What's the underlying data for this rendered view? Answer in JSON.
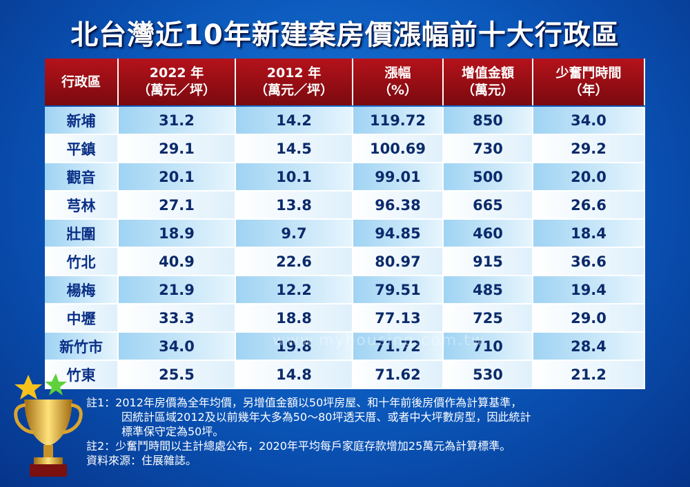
{
  "title": "北台灣近10年新建案房價漲幅前十大行政區",
  "table": {
    "header": [
      [
        "行政區"
      ],
      [
        "2022 年",
        "（萬元／坪）"
      ],
      [
        "2012 年",
        "（萬元／坪）"
      ],
      [
        "漲幅",
        "（%）"
      ],
      [
        "增值金額",
        "（萬元）"
      ],
      [
        "少奮鬥時間",
        "（年）"
      ]
    ],
    "rows": [
      [
        "新埔",
        "31.2",
        "14.2",
        "119.72",
        "850",
        "34.0"
      ],
      [
        "平鎮",
        "29.1",
        "14.5",
        "100.69",
        "730",
        "29.2"
      ],
      [
        "觀音",
        "20.1",
        "10.1",
        "99.01",
        "500",
        "20.0"
      ],
      [
        "芎林",
        "27.1",
        "13.8",
        "96.38",
        "665",
        "26.6"
      ],
      [
        "壯圍",
        "18.9",
        "9.7",
        "94.85",
        "460",
        "18.4"
      ],
      [
        "竹北",
        "40.9",
        "22.6",
        "80.97",
        "915",
        "36.6"
      ],
      [
        "楊梅",
        "21.9",
        "12.2",
        "79.51",
        "485",
        "19.4"
      ],
      [
        "中壢",
        "33.3",
        "18.8",
        "77.13",
        "725",
        "29.0"
      ],
      [
        "新竹市",
        "34.0",
        "19.8",
        "71.72",
        "710",
        "28.4"
      ],
      [
        "竹東",
        "25.5",
        "14.8",
        "71.62",
        "530",
        "21.2"
      ]
    ]
  },
  "watermark": "www.myhousing.com.tw",
  "notes": [
    "註1：2012年房價為全年均價，另增值金額以50坪房屋、和十年前後房價作為計算基準，",
    "因統計區域2012及以前幾年大多為50～80坪透天厝、或者中大坪數房型，因此統計",
    "標準保守定為50坪。",
    "註2：少奮鬥時間以主計總處公布，2020年平均每戶家庭存款增加25萬元為計算標準。",
    "資料來源：住展雜誌。"
  ]
}
